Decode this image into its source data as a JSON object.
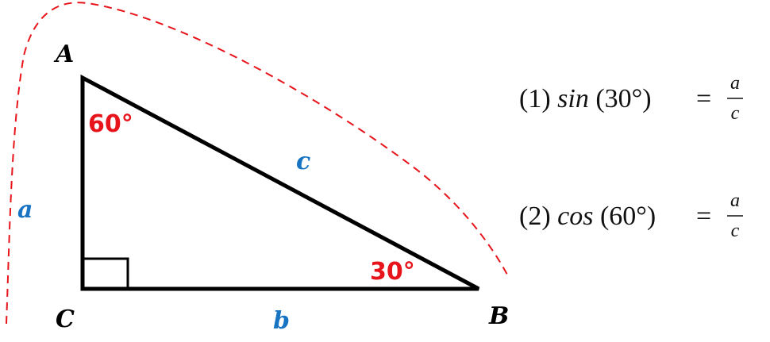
{
  "vertices": [
    "A",
    "C",
    "B"
  ],
  "angles": [
    "60°",
    "30°"
  ],
  "sides": [
    "a",
    "b",
    "c"
  ],
  "equations": [
    {
      "number": "(1)",
      "function": "sin",
      "argument": "(30°)",
      "equals": "=",
      "numerator": "a",
      "denominator": "c"
    },
    {
      "number": "(2)",
      "function": "cos",
      "argument": "(60°)",
      "equals": "=",
      "numerator": "a",
      "denominator": "c"
    }
  ]
}
